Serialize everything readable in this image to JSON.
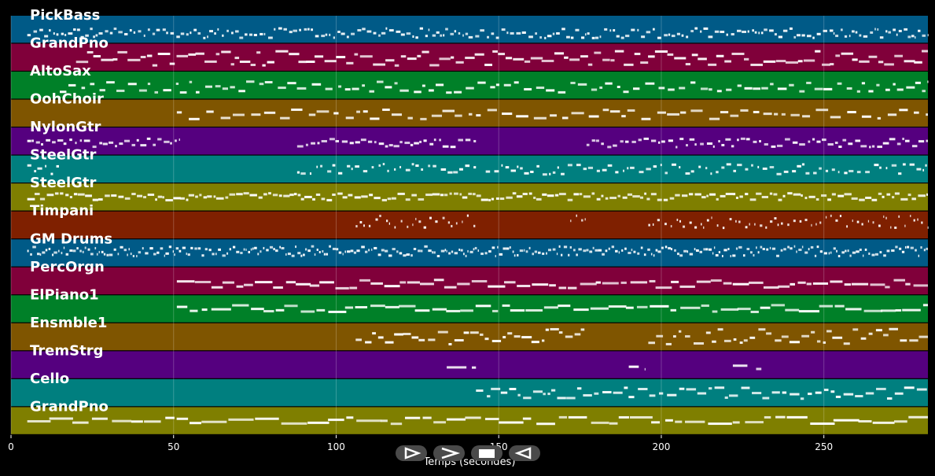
{
  "chart_data": {
    "type": "piano-roll",
    "xlabel": "Temps (secondes)",
    "xlim": [
      0,
      282
    ],
    "xticks": [
      0,
      50,
      100,
      150,
      200,
      250
    ],
    "grid": true,
    "tracks": [
      {
        "name": "PickBass",
        "color": "#005a87",
        "segments": [
          [
            5,
            282
          ]
        ],
        "density": 1.3,
        "range": [
          0.2,
          0.55
        ],
        "noteLen": 0.9
      },
      {
        "name": "GrandPno",
        "color": "#80003a",
        "segments": [
          [
            20,
            282
          ]
        ],
        "density": 1.6,
        "range": [
          0.2,
          0.75
        ],
        "noteLen": 2.5
      },
      {
        "name": "AltoSax",
        "color": "#008028",
        "segments": [
          [
            15,
            282
          ]
        ],
        "density": 0.6,
        "range": [
          0.25,
          0.65
        ],
        "noteLen": 1.8
      },
      {
        "name": "OohChoir",
        "color": "#7f5500",
        "segments": [
          [
            51,
            282
          ]
        ],
        "density": 0.5,
        "range": [
          0.3,
          0.65
        ],
        "noteLen": 2.5
      },
      {
        "name": "NylonGtr",
        "color": "#55007f",
        "segments": [
          [
            5,
            52
          ],
          [
            88,
            143
          ],
          [
            177,
            282
          ]
        ],
        "density": 1.1,
        "range": [
          0.3,
          0.6
        ],
        "noteLen": 1.2
      },
      {
        "name": "SteelGtr",
        "color": "#007f7f",
        "segments": [
          [
            5,
            15
          ],
          [
            88,
            143
          ],
          [
            146,
            282
          ]
        ],
        "density": 0.8,
        "range": [
          0.3,
          0.7
        ],
        "noteLen": 1.0
      },
      {
        "name": "SteelGtr",
        "color": "#7f7f00",
        "segments": [
          [
            5,
            282
          ]
        ],
        "density": 1.6,
        "range": [
          0.4,
          0.65
        ],
        "noteLen": 1.5
      },
      {
        "name": "Timpani",
        "color": "#7f2000",
        "segments": [
          [
            106,
            143
          ],
          [
            172,
            177
          ],
          [
            196,
            282
          ]
        ],
        "density": 0.8,
        "range": [
          0.4,
          0.85
        ],
        "noteLen": 0.5
      },
      {
        "name": "GM Drums",
        "color": "#005a87",
        "segments": [
          [
            5,
            282
          ]
        ],
        "density": 2.2,
        "range": [
          0.4,
          0.75
        ],
        "noteLen": 0.7
      },
      {
        "name": "PercOrgn",
        "color": "#80003a",
        "segments": [
          [
            51,
            282
          ]
        ],
        "density": 0.9,
        "range": [
          0.25,
          0.55
        ],
        "noteLen": 3.5
      },
      {
        "name": "ElPiano1",
        "color": "#008028",
        "segments": [
          [
            51,
            282
          ]
        ],
        "density": 0.8,
        "range": [
          0.4,
          0.65
        ],
        "noteLen": 4.0
      },
      {
        "name": "Ensmble1",
        "color": "#7f5500",
        "segments": [
          [
            106,
            177
          ],
          [
            196,
            282
          ]
        ],
        "density": 1.0,
        "range": [
          0.25,
          0.8
        ],
        "noteLen": 2.0
      },
      {
        "name": "TremStrg",
        "color": "#55007f",
        "segments": [
          [
            134,
            143
          ],
          [
            190,
            195
          ],
          [
            222,
            231
          ]
        ],
        "density": 0.3,
        "range": [
          0.3,
          0.55
        ],
        "noteLen": 4.0
      },
      {
        "name": "Cello",
        "color": "#007f7f",
        "segments": [
          [
            143,
            282
          ]
        ],
        "density": 0.9,
        "range": [
          0.3,
          0.7
        ],
        "noteLen": 2.0
      },
      {
        "name": "GrandPno",
        "color": "#7f7f00",
        "segments": [
          [
            5,
            282
          ]
        ],
        "density": 0.6,
        "range": [
          0.4,
          0.65
        ],
        "noteLen": 5.0
      }
    ]
  },
  "controls": {
    "play": "play-icon",
    "next": "next-icon",
    "stop": "stop-icon",
    "rewind": "rewind-icon"
  }
}
